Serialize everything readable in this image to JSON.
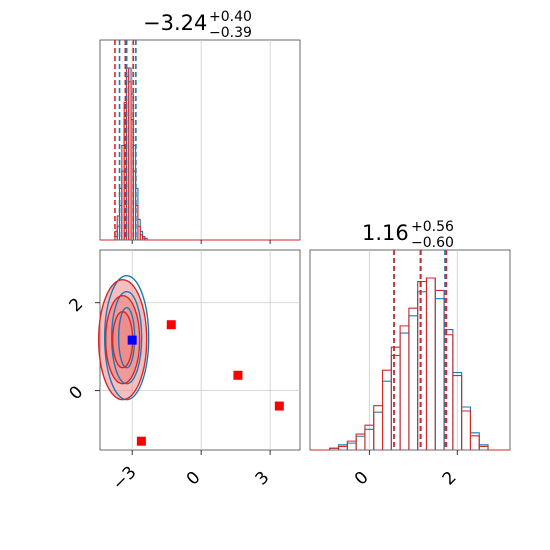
{
  "chart_data": {
    "type": "corner",
    "parameters": [
      {
        "title_median": "−3.24",
        "title_plus": "+0.40",
        "title_minus": "−0.39",
        "range": [
          -4.4,
          4.3
        ],
        "ticks": [
          -3,
          0,
          3
        ],
        "tick_labels": [
          "−3",
          "0",
          "3"
        ],
        "quantile_lines": {
          "blue": [
            -3.55,
            -3.24,
            -2.84
          ],
          "red": [
            -3.75,
            -3.3,
            -2.95
          ]
        }
      },
      {
        "title_median": "1.16",
        "title_plus": "+0.56",
        "title_minus": "−0.60",
        "range": [
          -1.35,
          3.2
        ],
        "ticks": [
          0,
          2
        ],
        "tick_labels": [
          "0",
          "2"
        ],
        "quantile_lines": {
          "blue": [
            0.56,
            1.16,
            1.72
          ],
          "red": [
            0.54,
            1.15,
            1.73
          ]
        }
      }
    ],
    "marginal_1d_x": [
      -3.7,
      -3.6,
      -3.5,
      -3.4,
      -3.3,
      -3.2,
      -3.1,
      -3.0,
      -2.9,
      -2.8,
      -2.7,
      -2.6,
      -2.5,
      -2.4
    ],
    "marginal_1d_blue": [
      2,
      8,
      20,
      40,
      70,
      95,
      100,
      85,
      55,
      30,
      12,
      5,
      2,
      1
    ],
    "marginal_1d_red": [
      5,
      14,
      30,
      55,
      80,
      100,
      92,
      70,
      40,
      20,
      8,
      3,
      1,
      0
    ],
    "marginal_2d_x": [
      -0.8,
      -0.6,
      -0.4,
      -0.2,
      0.0,
      0.2,
      0.4,
      0.6,
      0.8,
      1.0,
      1.2,
      1.4,
      1.6,
      1.8,
      2.0,
      2.2,
      2.4,
      2.6
    ],
    "marginal_2d_blue": [
      1,
      3,
      4,
      8,
      12,
      22,
      40,
      55,
      68,
      78,
      92,
      100,
      88,
      70,
      45,
      25,
      10,
      3
    ],
    "marginal_2d_red": [
      1,
      2,
      5,
      9,
      14,
      25,
      45,
      58,
      70,
      80,
      95,
      97,
      90,
      65,
      42,
      22,
      8,
      2
    ],
    "markers": [
      {
        "x": -1.3,
        "y": 1.5,
        "color": "#ff0000"
      },
      {
        "x": 1.6,
        "y": 0.35,
        "color": "#ff0000"
      },
      {
        "x": 3.4,
        "y": -0.35,
        "color": "#ff0000"
      },
      {
        "x": -2.6,
        "y": -1.15,
        "color": "#ff0000"
      },
      {
        "x": -3.0,
        "y": 1.15,
        "color": "#0000ff"
      }
    ],
    "contour_center": {
      "x": -3.24,
      "y": 1.16
    },
    "colors": {
      "blue": "#1f77b4",
      "red": "#d62728",
      "red_fill": "#ef8a8a"
    }
  }
}
